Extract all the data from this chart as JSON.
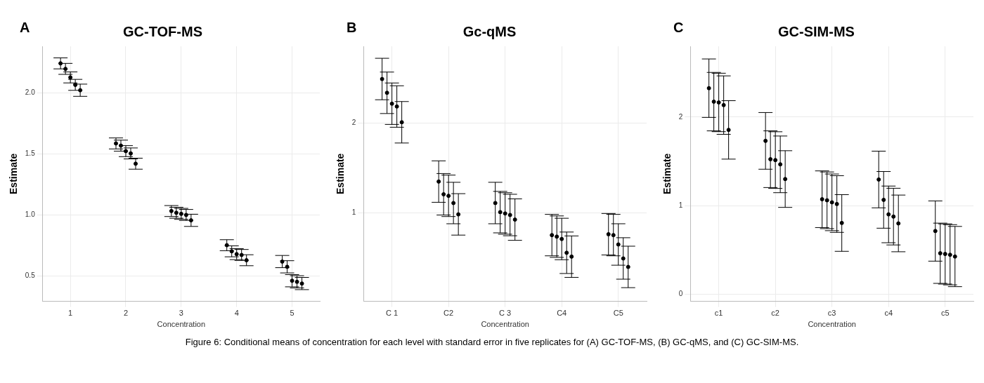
{
  "chart_data": [
    {
      "type": "scatter",
      "title": "GC-TOF-MS",
      "xlabel": "Concentration",
      "ylabel": "Estimate",
      "annotations": [
        "A",
        "Figure 6: Conditional means of concentration for each level with standard error in five replicates for (A) GC-TOF-MS, (B) GC-qMS, and (C) GC-SIM-MS."
      ],
      "categories": [
        "1",
        "2",
        "3",
        "4",
        "5"
      ],
      "ylim": [
        0.29,
        2.38
      ],
      "yticks": [
        {
          "value": 0.5,
          "label": "0.5"
        },
        {
          "value": 1,
          "label": "1.0"
        },
        {
          "value": 1.5,
          "label": "1.5"
        },
        {
          "value": 2,
          "label": "2.0"
        }
      ],
      "grid": true,
      "legend": false,
      "marker": "circle",
      "series": [
        {
          "color": "#000000",
          "values": [
            2.24,
            1.584,
            1.03,
            0.75,
            0.616
          ],
          "errors": [
            0.045,
            0.045,
            0.045,
            0.045,
            0.05
          ]
        },
        {
          "color": "#000000",
          "values": [
            2.195,
            1.566,
            1.016,
            0.7,
            0.573
          ],
          "errors": [
            0.045,
            0.045,
            0.045,
            0.045,
            0.05
          ]
        },
        {
          "color": "#000000",
          "values": [
            2.125,
            1.521,
            1.007,
            0.677,
            0.459
          ],
          "errors": [
            0.045,
            0.045,
            0.045,
            0.045,
            0.05
          ]
        },
        {
          "color": "#000000",
          "values": [
            2.064,
            1.502,
            0.998,
            0.67,
            0.45
          ],
          "errors": [
            0.045,
            0.045,
            0.045,
            0.045,
            0.05
          ]
        },
        {
          "color": "#000000",
          "values": [
            2.02,
            1.418,
            0.954,
            0.627,
            0.436
          ],
          "errors": [
            0.05,
            0.045,
            0.05,
            0.045,
            0.05
          ]
        }
      ]
    },
    {
      "type": "scatter",
      "title": "Gc-qMS",
      "xlabel": "Concentration",
      "ylabel": "Estimate",
      "annotations": [
        "B"
      ],
      "categories": [
        "C 1",
        "C2",
        "C 3",
        "C4",
        "C5"
      ],
      "ylim": [
        0.02,
        2.85
      ],
      "yticks": [
        1,
        2
      ],
      "grid": true,
      "legend": false,
      "marker": "circle",
      "series": [
        {
          "color": "#000000",
          "values": [
            2.487,
            1.349,
            1.111,
            0.755,
            0.765
          ],
          "errors": [
            0.23,
            0.23,
            0.23,
            0.23,
            0.23
          ]
        },
        {
          "color": "#000000",
          "values": [
            2.334,
            1.208,
            1.01,
            0.738,
            0.755
          ],
          "errors": [
            0.23,
            0.23,
            0.23,
            0.23,
            0.23
          ]
        },
        {
          "color": "#000000",
          "values": [
            2.213,
            1.191,
            0.995,
            0.712,
            0.651
          ],
          "errors": [
            0.23,
            0.23,
            0.23,
            0.23,
            0.23
          ]
        },
        {
          "color": "#000000",
          "values": [
            2.182,
            1.111,
            0.978,
            0.559,
            0.496
          ],
          "errors": [
            0.23,
            0.23,
            0.23,
            0.23,
            0.23
          ]
        },
        {
          "color": "#000000",
          "values": [
            2.007,
            0.985,
            0.927,
            0.516,
            0.402
          ],
          "errors": [
            0.23,
            0.23,
            0.23,
            0.23,
            0.23
          ]
        }
      ]
    },
    {
      "type": "scatter",
      "title": "GC-SIM-MS",
      "xlabel": "Concentration",
      "ylabel": "Estimate",
      "annotations": [
        "C"
      ],
      "categories": [
        "c1",
        "c2",
        "c3",
        "c4",
        "c5"
      ],
      "ylim": [
        -0.08,
        2.8
      ],
      "yticks": [
        0,
        1,
        2
      ],
      "grid": true,
      "legend": false,
      "marker": "circle",
      "series": [
        {
          "color": "#000000",
          "values": [
            2.327,
            1.732,
            1.073,
            1.296,
            0.714
          ],
          "errors": [
            0.33,
            0.32,
            0.32,
            0.32,
            0.34
          ]
        },
        {
          "color": "#000000",
          "values": [
            2.175,
            1.525,
            1.061,
            1.066,
            0.463
          ],
          "errors": [
            0.33,
            0.32,
            0.32,
            0.32,
            0.34
          ]
        },
        {
          "color": "#000000",
          "values": [
            2.166,
            1.515,
            1.038,
            0.902,
            0.455
          ],
          "errors": [
            0.33,
            0.32,
            0.32,
            0.32,
            0.34
          ]
        },
        {
          "color": "#000000",
          "values": [
            2.136,
            1.467,
            1.019,
            0.877,
            0.446
          ],
          "errors": [
            0.33,
            0.32,
            0.32,
            0.32,
            0.34
          ]
        },
        {
          "color": "#000000",
          "values": [
            1.856,
            1.301,
            0.805,
            0.8,
            0.426
          ],
          "errors": [
            0.33,
            0.32,
            0.32,
            0.32,
            0.34
          ]
        }
      ]
    }
  ]
}
